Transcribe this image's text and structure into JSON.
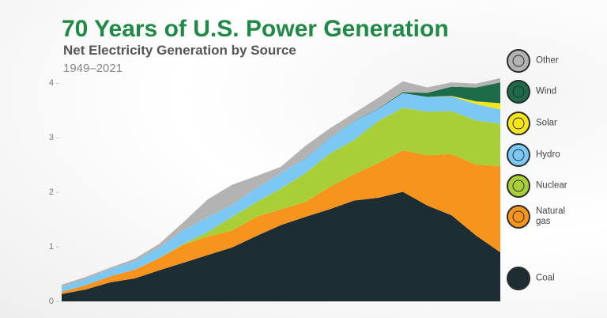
{
  "chart_data": {
    "type": "stacked_area",
    "title": "70 Years of U.S. Power Generation",
    "subtitle": "Net Electricity Generation by Source",
    "period": "1949–2021",
    "x": [
      1949,
      1953,
      1957,
      1961,
      1965,
      1969,
      1973,
      1977,
      1981,
      1985,
      1989,
      1993,
      1997,
      2001,
      2005,
      2009,
      2013,
      2017,
      2021
    ],
    "xlim": [
      1949,
      2021
    ],
    "ylim": [
      0,
      4.15
    ],
    "yticks": [
      0,
      1,
      2,
      3,
      4
    ],
    "series": [
      {
        "name": "Coal",
        "color": "#1c2e33",
        "values": [
          0.135,
          0.22,
          0.35,
          0.42,
          0.57,
          0.71,
          0.85,
          0.99,
          1.2,
          1.4,
          1.55,
          1.69,
          1.85,
          1.9,
          2.01,
          1.76,
          1.58,
          1.21,
          0.9
        ]
      },
      {
        "name": "Natural gas",
        "color": "#f7941d",
        "values": [
          0.04,
          0.08,
          0.11,
          0.16,
          0.22,
          0.33,
          0.34,
          0.31,
          0.35,
          0.29,
          0.27,
          0.41,
          0.48,
          0.64,
          0.76,
          0.92,
          1.12,
          1.3,
          1.58
        ]
      },
      {
        "name": "Nuclear",
        "color": "#a8cf38",
        "values": [
          0,
          0,
          0,
          0.002,
          0.004,
          0.014,
          0.083,
          0.25,
          0.27,
          0.38,
          0.53,
          0.61,
          0.63,
          0.77,
          0.78,
          0.8,
          0.79,
          0.81,
          0.78
        ]
      },
      {
        "name": "Hydro",
        "color": "#7cc8f5",
        "values": [
          0.09,
          0.11,
          0.13,
          0.15,
          0.19,
          0.25,
          0.27,
          0.22,
          0.26,
          0.28,
          0.27,
          0.28,
          0.34,
          0.22,
          0.27,
          0.27,
          0.27,
          0.3,
          0.26
        ]
      },
      {
        "name": "Solar",
        "color": "#f5e61a",
        "values": [
          0,
          0,
          0,
          0,
          0,
          0,
          0,
          0,
          0,
          0,
          0,
          0,
          0,
          0,
          0,
          0.001,
          0.01,
          0.05,
          0.115
        ]
      },
      {
        "name": "Wind",
        "color": "#1e6b4a",
        "values": [
          0,
          0,
          0,
          0,
          0,
          0,
          0,
          0,
          0,
          0,
          0.002,
          0.003,
          0.003,
          0.007,
          0.018,
          0.074,
          0.168,
          0.254,
          0.38
        ]
      },
      {
        "name": "Other",
        "color": "#b3b3b3",
        "values": [
          0.04,
          0.04,
          0.03,
          0.05,
          0.07,
          0.15,
          0.33,
          0.37,
          0.22,
          0.12,
          0.23,
          0.18,
          0.15,
          0.2,
          0.2,
          0.1,
          0.08,
          0.07,
          0.08
        ]
      }
    ]
  }
}
